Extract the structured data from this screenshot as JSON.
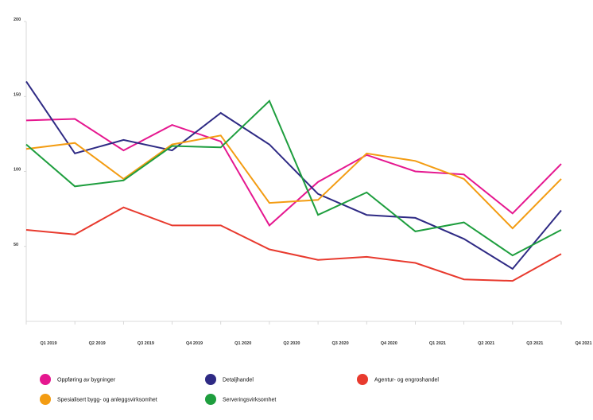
{
  "chart_data": {
    "type": "line",
    "title": "",
    "xlabel": "",
    "ylabel": "",
    "ylim": [
      0,
      200
    ],
    "yticks": [
      50,
      100,
      150,
      200
    ],
    "grid": false,
    "legend_position": "bottom",
    "categories": [
      "Q1 2019",
      "Q2 2019",
      "Q3 2019",
      "Q4 2019",
      "Q1 2020",
      "Q2 2020",
      "Q3 2020",
      "Q4 2020",
      "Q1 2021",
      "Q2 2021",
      "Q3 2021",
      "Q4 2021"
    ],
    "series": [
      {
        "name": "Oppføring av bygninger",
        "color": "#e5178f",
        "values": [
          134,
          135,
          114,
          131,
          120,
          64,
          93,
          111,
          100,
          98,
          72,
          105
        ]
      },
      {
        "name": "Detaljhandel",
        "color": "#2e2a84",
        "values": [
          160,
          112,
          121,
          114,
          139,
          118,
          85,
          71,
          69,
          55,
          35,
          74
        ]
      },
      {
        "name": "Agentur- og engroshandel",
        "color": "#e83a2e",
        "values": [
          61,
          58,
          76,
          64,
          64,
          48,
          41,
          43,
          39,
          28,
          27,
          45
        ]
      },
      {
        "name": "Spesialisert bygg- og anleggsvirksomhet",
        "color": "#f39c12",
        "values": [
          115,
          119,
          95,
          118,
          124,
          79,
          81,
          112,
          107,
          95,
          62,
          95
        ]
      },
      {
        "name": "Serveringsvirksomhet",
        "color": "#1e9e3e",
        "values": [
          118,
          90,
          94,
          117,
          116,
          147,
          71,
          86,
          60,
          66,
          44,
          61
        ]
      }
    ]
  }
}
